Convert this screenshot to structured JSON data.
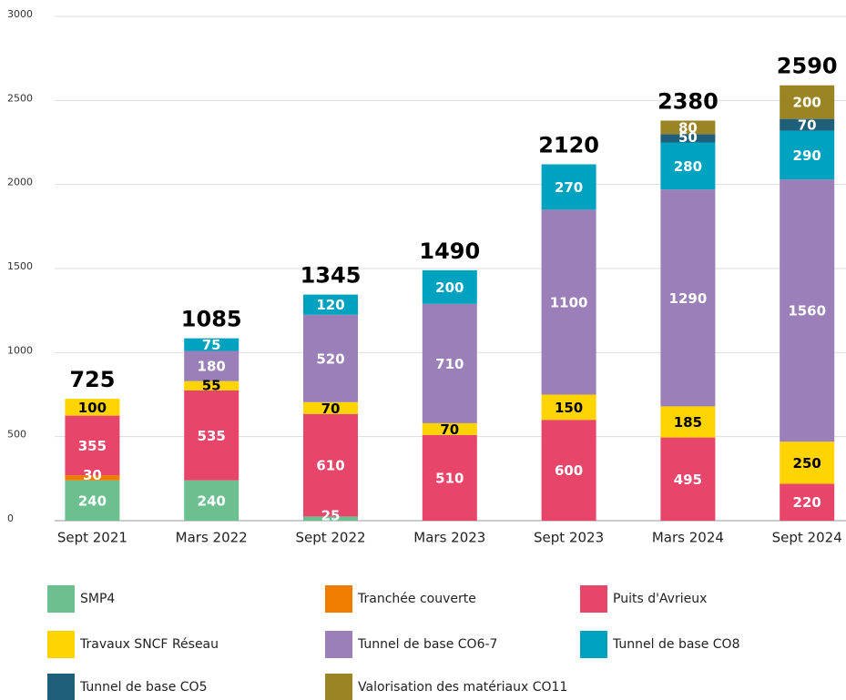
{
  "chart_data": {
    "type": "stacked_bar",
    "categories": [
      "Sept 2021",
      "Mars 2022",
      "Sept 2022",
      "Mars 2023",
      "Sept 2023",
      "Mars 2024",
      "Sept 2024"
    ],
    "series": [
      {
        "name": "SMP4",
        "color": "#6cc08f",
        "label_color": "#ffffff",
        "values": [
          240,
          240,
          25,
          null,
          null,
          null,
          null
        ]
      },
      {
        "name": "Tranchée couverte",
        "color": "#f07c00",
        "label_color": "#ffffff",
        "values": [
          30,
          null,
          null,
          null,
          null,
          null,
          null
        ]
      },
      {
        "name": "Puits d'Avrieux",
        "color": "#e8456a",
        "label_color": "#ffffff",
        "values": [
          355,
          535,
          610,
          510,
          600,
          495,
          220
        ]
      },
      {
        "name": "Travaux SNCF Réseau",
        "color": "#ffd400",
        "label_color": "#000000",
        "values": [
          100,
          55,
          70,
          70,
          150,
          185,
          250
        ]
      },
      {
        "name": "Tunnel de base CO6-7",
        "color": "#9b7fb8",
        "label_color": "#ffffff",
        "values": [
          null,
          180,
          520,
          710,
          1100,
          1290,
          1560
        ]
      },
      {
        "name": "Tunnel de base CO8",
        "color": "#00a3bf",
        "label_color": "#ffffff",
        "values": [
          null,
          75,
          120,
          200,
          270,
          280,
          290
        ]
      },
      {
        "name": "Tunnel de base CO5",
        "color": "#1f5f7a",
        "label_color": "#ffffff",
        "values": [
          null,
          null,
          null,
          null,
          null,
          50,
          70
        ]
      },
      {
        "name": "Valorisation des matériaux CO11",
        "color": "#9b8424",
        "label_color": "#ffffff",
        "values": [
          null,
          null,
          null,
          null,
          null,
          80,
          200
        ]
      }
    ],
    "totals": [
      725,
      1085,
      1345,
      1490,
      2120,
      2380,
      2590
    ],
    "ylim": [
      0,
      3000
    ],
    "yticks": [
      0,
      500,
      1000,
      1500,
      2000,
      2500,
      3000
    ],
    "grid": true
  }
}
